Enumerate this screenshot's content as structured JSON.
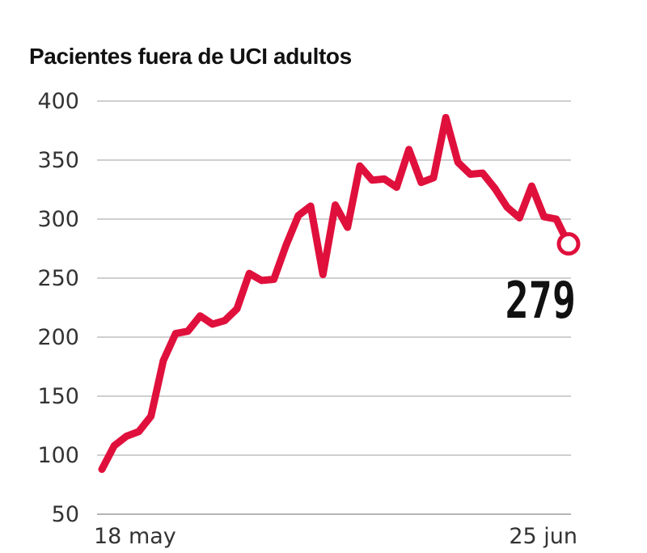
{
  "chart_data": {
    "type": "line",
    "title": "Pacientes fuera de UCI adultos",
    "xlabel": "",
    "ylabel": "",
    "x_tick_labels": [
      "18 may",
      "25 jun"
    ],
    "x_start": "18 may",
    "x_end": "25 jun",
    "y_ticks": [
      400,
      350,
      300,
      250,
      200,
      150,
      100,
      50
    ],
    "ylim": [
      50,
      400
    ],
    "grid": true,
    "line_color": "#e0103c",
    "series": [
      {
        "values": [
          88,
          108,
          116,
          120,
          133,
          180,
          203,
          205,
          218,
          211,
          214,
          224,
          254,
          248,
          249,
          278,
          303,
          311,
          253,
          312,
          293,
          345,
          333,
          334,
          327,
          359,
          331,
          335,
          386,
          348,
          338,
          339,
          326,
          310,
          301,
          328,
          302,
          300,
          279
        ]
      }
    ],
    "last_value_label": "279"
  }
}
